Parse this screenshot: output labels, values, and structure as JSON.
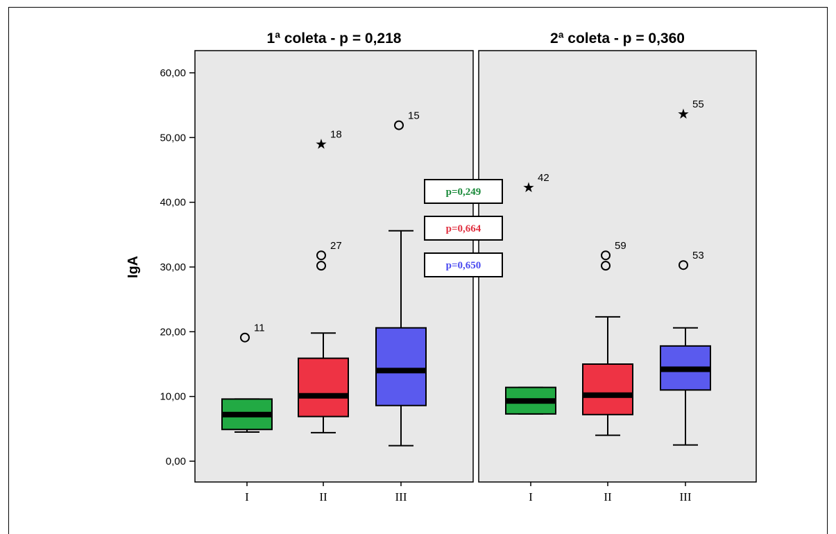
{
  "chart_data": {
    "type": "boxplot",
    "ylabel": "IgA",
    "ylim": [
      -3,
      67
    ],
    "yticks": [
      "0,00",
      "10,00",
      "20,00",
      "30,00",
      "40,00",
      "50,00",
      "60,00"
    ],
    "ytick_values": [
      0,
      10,
      20,
      30,
      40,
      50,
      60
    ],
    "categories": [
      "I",
      "II",
      "III"
    ],
    "colors": {
      "I": "#22aa44",
      "II": "#ee3344",
      "III": "#5a5aee"
    },
    "panels": [
      {
        "title": "1ª coleta   - p = 0,218",
        "boxes": [
          {
            "category": "I",
            "min": 4.5,
            "q1": 4.9,
            "median": 7.2,
            "q3": 9.6,
            "max": 9.6,
            "outliers": [
              {
                "value": 19.1,
                "label": "11",
                "marker": "circle"
              }
            ]
          },
          {
            "category": "II",
            "min": 4.4,
            "q1": 6.9,
            "median": 10.1,
            "q3": 15.9,
            "max": 19.8,
            "outliers": [
              {
                "value": 49.0,
                "label": "18",
                "marker": "star"
              },
              {
                "value": 31.8,
                "label": "27",
                "marker": "circle"
              },
              {
                "value": 30.2,
                "label": "",
                "marker": "circle"
              }
            ]
          },
          {
            "category": "III",
            "min": 2.4,
            "q1": 8.6,
            "median": 14.0,
            "q3": 20.6,
            "max": 35.6,
            "outliers": [
              {
                "value": 51.9,
                "label": "15",
                "marker": "circle"
              }
            ]
          }
        ]
      },
      {
        "title": "2ª coleta   - p =  0,360",
        "boxes": [
          {
            "category": "I",
            "min": 7.3,
            "q1": 7.3,
            "median": 9.3,
            "q3": 11.4,
            "max": 11.4,
            "outliers": [
              {
                "value": 42.3,
                "label": "42",
                "marker": "star"
              }
            ]
          },
          {
            "category": "II",
            "min": 4.0,
            "q1": 7.2,
            "median": 10.2,
            "q3": 15.0,
            "max": 22.3,
            "outliers": [
              {
                "value": 31.8,
                "label": "59",
                "marker": "circle"
              },
              {
                "value": 30.2,
                "label": "",
                "marker": "circle"
              }
            ]
          },
          {
            "category": "III",
            "min": 2.5,
            "q1": 11.0,
            "median": 14.2,
            "q3": 17.8,
            "max": 20.6,
            "outliers": [
              {
                "value": 53.7,
                "label": "55",
                "marker": "star"
              },
              {
                "value": 30.3,
                "label": "53",
                "marker": "circle"
              }
            ]
          }
        ]
      }
    ],
    "annotations": [
      {
        "text": "p=0,249",
        "color": "#1a8a3a"
      },
      {
        "text": "p=0,664",
        "color": "#e03040"
      },
      {
        "text": "p=0,650",
        "color": "#4a4af0"
      }
    ]
  }
}
